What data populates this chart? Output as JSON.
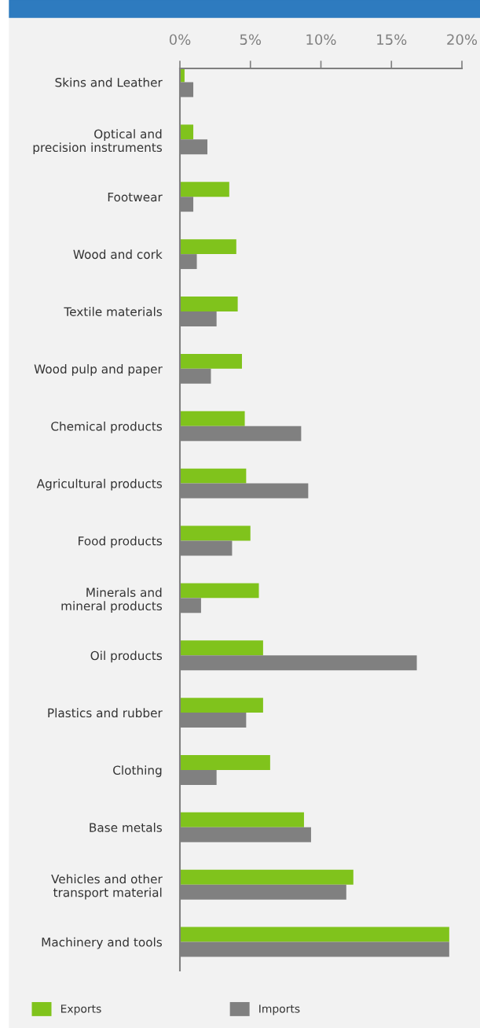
{
  "chart_data": {
    "type": "bar",
    "orientation": "horizontal",
    "categories": [
      "Skins and Leather",
      "Optical and precision instruments",
      "Footwear",
      "Wood and cork",
      "Textile materials",
      "Wood pulp and paper",
      "Chemical products",
      "Agricultural products",
      "Food products",
      "Minerals and mineral products",
      "Oil products",
      "Plastics and rubber",
      "Clothing",
      "Base metals",
      "Vehicles and other transport material",
      "Machinery and tools"
    ],
    "series": [
      {
        "name": "Exports",
        "color": "#80c31c",
        "values": [
          0.33,
          0.95,
          3.5,
          4.0,
          4.1,
          4.4,
          4.6,
          4.7,
          5.0,
          5.6,
          5.9,
          5.9,
          6.4,
          8.8,
          12.3,
          19.1
        ]
      },
      {
        "name": "Imports",
        "color": "#808080",
        "values": [
          0.95,
          1.95,
          0.95,
          1.2,
          2.6,
          2.2,
          8.6,
          9.1,
          3.7,
          1.5,
          16.8,
          4.7,
          2.6,
          9.3,
          11.8,
          19.1
        ]
      }
    ],
    "xlim": [
      0,
      20
    ],
    "xticks": [
      {
        "value": 0,
        "label": "0%"
      },
      {
        "value": 5,
        "label": "5%"
      },
      {
        "value": 10,
        "label": "10%"
      },
      {
        "value": 15,
        "label": "15%"
      },
      {
        "value": 20,
        "label": "20%"
      }
    ],
    "grid": false,
    "legend": "bottom"
  }
}
